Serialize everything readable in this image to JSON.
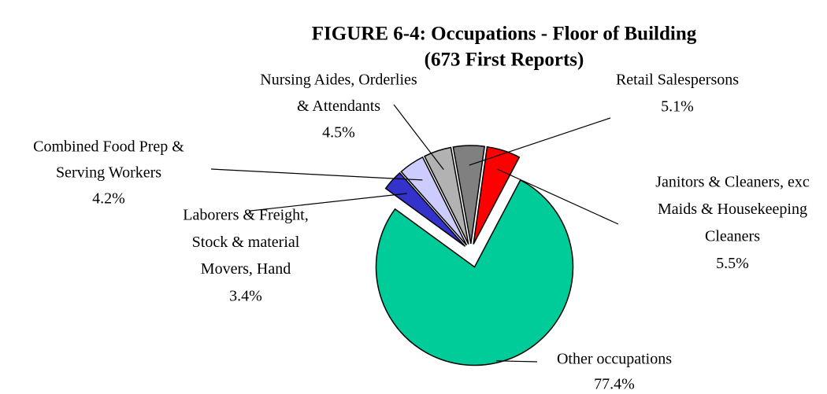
{
  "chart_data": {
    "type": "pie",
    "title": "FIGURE 6-4:  Occupations - Floor of Building",
    "subtitle": "(673 First Reports)",
    "categories": [
      [
        "Janitors & Cleaners, exc",
        "Maids & Housekeeping",
        "Cleaners"
      ],
      [
        "Other occupations"
      ],
      [
        "Laborers & Freight,",
        "Stock & material",
        "Movers, Hand"
      ],
      [
        "Combined Food Prep &",
        "Serving Workers"
      ],
      [
        "Nursing Aides, Orderlies",
        "& Attendants"
      ],
      [
        "Retail Salespersons"
      ]
    ],
    "values": [
      5.5,
      77.4,
      3.4,
      4.2,
      4.5,
      5.1
    ],
    "value_labels": [
      "5.5%",
      "77.4%",
      "3.4%",
      "4.2%",
      "4.5%",
      "5.1%"
    ],
    "colors": [
      "#ff0000",
      "#00cc99",
      "#3333cc",
      "#ccccff",
      "#b2b2b2",
      "#808080"
    ]
  }
}
